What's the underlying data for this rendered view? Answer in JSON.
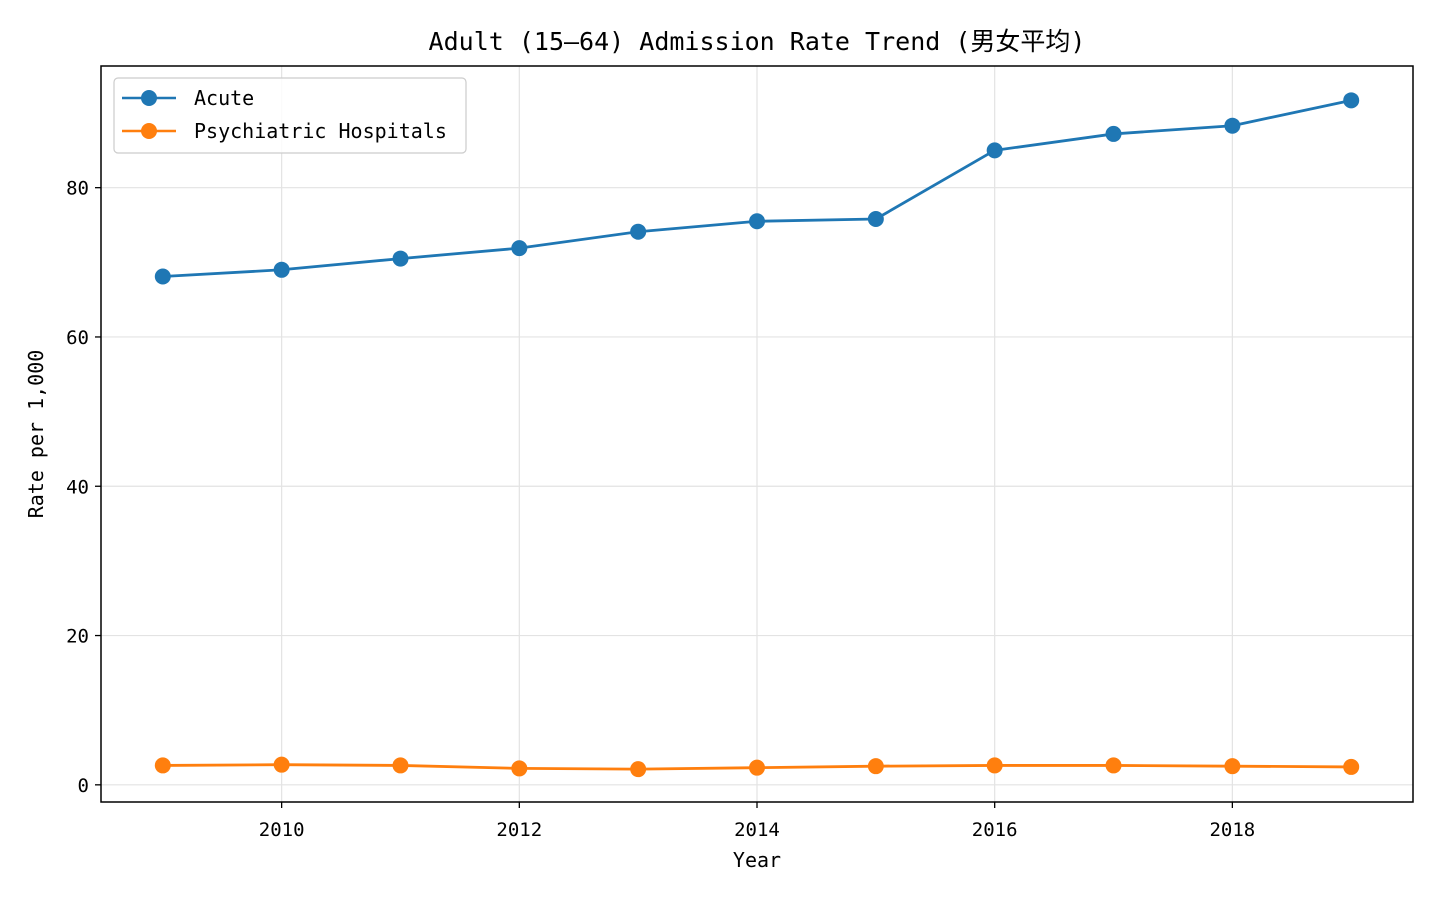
{
  "chart_data": {
    "type": "line",
    "title": "Adult (15–64) Admission Rate Trend (男女平均)",
    "xlabel": "Year",
    "ylabel": "Rate per 1,000",
    "x": [
      2009,
      2010,
      2011,
      2012,
      2013,
      2014,
      2015,
      2016,
      2017,
      2018,
      2019
    ],
    "x_ticks": [
      "2010",
      "2012",
      "2014",
      "2016",
      "2018"
    ],
    "y_ticks": [
      "0",
      "20",
      "40",
      "60",
      "80"
    ],
    "xlim": [
      2008.48,
      2019.52
    ],
    "ylim": [
      -2.3,
      96.3
    ],
    "grid": true,
    "legend_position": "top-left",
    "series": [
      {
        "name": "Acute",
        "color": "#1f77b4",
        "values": [
          68.1,
          69.0,
          70.5,
          71.9,
          74.1,
          75.5,
          75.8,
          85.0,
          87.2,
          88.3,
          91.7
        ]
      },
      {
        "name": "Psychiatric Hospitals",
        "color": "#ff7f0e",
        "values": [
          2.6,
          2.7,
          2.6,
          2.2,
          2.1,
          2.3,
          2.5,
          2.6,
          2.6,
          2.5,
          2.4
        ]
      }
    ]
  }
}
